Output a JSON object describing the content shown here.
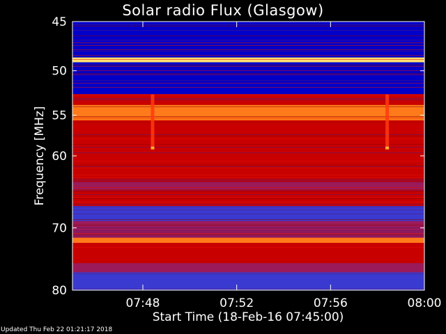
{
  "chart_data": {
    "type": "heatmap",
    "title": "Solar radio Flux (Glasgow)",
    "xlabel": "Start Time (18-Feb-16 07:45:00)",
    "ylabel": "Frequency [MHz]",
    "x_range": [
      "07:45",
      "08:00"
    ],
    "y_range": [
      45,
      80
    ],
    "x_ticks": [
      "07:48",
      "07:52",
      "07:56",
      "08:00"
    ],
    "y_ticks": [
      45,
      50,
      55,
      60,
      70,
      80
    ],
    "colorscale": [
      "#0000c8",
      "#3a3ad0",
      "#9b1a5a",
      "#c80000",
      "#ff2a00",
      "#ff7a1a",
      "#ffe070"
    ],
    "bands": [
      {
        "f0": 45,
        "f1": 48.6,
        "level": 0
      },
      {
        "f0": 48.6,
        "f1": 49.1,
        "level": 6
      },
      {
        "f0": 49.1,
        "f1": 52.6,
        "level": 0
      },
      {
        "f0": 52.6,
        "f1": 53.8,
        "level": 3
      },
      {
        "f0": 53.8,
        "f1": 55.6,
        "level": 5
      },
      {
        "f0": 55.6,
        "f1": 63.5,
        "level": 3
      },
      {
        "f0": 63.5,
        "f1": 64.5,
        "level": 2
      },
      {
        "f0": 64.5,
        "f1": 66.8,
        "level": 3
      },
      {
        "f0": 66.8,
        "f1": 69.0,
        "level": 1
      },
      {
        "f0": 69.0,
        "f1": 71.5,
        "level": 2
      },
      {
        "f0": 71.5,
        "f1": 72.3,
        "level": 5
      },
      {
        "f0": 72.3,
        "f1": 75.5,
        "level": 3
      },
      {
        "f0": 75.5,
        "f1": 77.0,
        "level": 2
      },
      {
        "f0": 77.0,
        "f1": 80.0,
        "level": 1
      }
    ],
    "bursts": [
      {
        "time": "07:48:24",
        "f0": 52.6,
        "f1": 59.0
      },
      {
        "time": "07:58:24",
        "f0": 52.6,
        "f1": 59.0
      }
    ]
  },
  "footer": "Updated Thu Feb 22 01:21:17 2018"
}
